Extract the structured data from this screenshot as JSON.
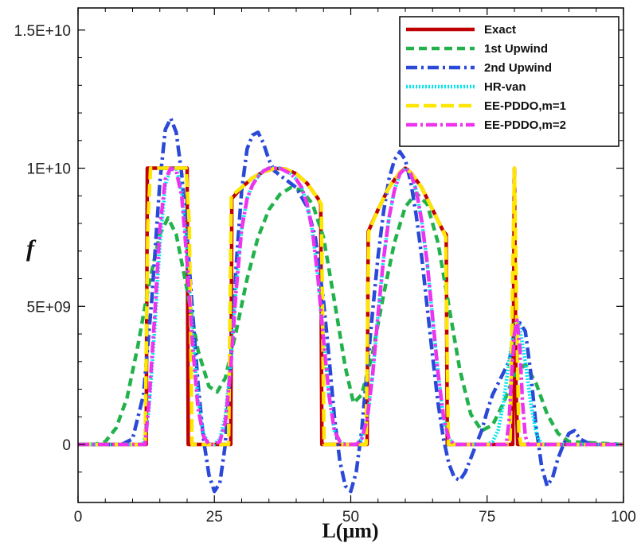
{
  "chart_data": {
    "type": "line",
    "title": "",
    "xlabel": "L(μm)",
    "ylabel": "f",
    "xlim": [
      0,
      100
    ],
    "ylim": [
      -2100000000,
      15800000000
    ],
    "x_ticks": [
      0,
      25,
      50,
      75,
      100
    ],
    "x_tick_labels": [
      "0",
      "25",
      "50",
      "75",
      "100"
    ],
    "y_ticks": [
      0,
      5000000000,
      10000000000,
      15000000000
    ],
    "y_tick_labels": [
      "0",
      "5E+09",
      "1E+10",
      "1.5E+10"
    ],
    "grid": false,
    "legend_position": "top-right",
    "series": [
      {
        "name": "Exact",
        "color": "#c00000",
        "dash": "solid",
        "x": [
          0,
          12.5,
          12.7,
          20,
          20.2,
          28,
          28.2,
          30,
          32,
          34,
          36,
          38,
          40,
          42,
          44,
          44.5,
          44.7,
          53,
          53.2,
          55,
          57,
          59,
          60,
          61,
          63,
          65,
          67,
          67.5,
          67.7,
          79.7,
          80,
          80.3,
          80.6,
          100
        ],
        "y": [
          0,
          0,
          10000000000,
          10000000000,
          0,
          0,
          8900000000,
          9300000000,
          9650000000,
          9870000000,
          9990000000,
          9970000000,
          9800000000,
          9450000000,
          8900000000,
          8700000000,
          0,
          0,
          7700000000,
          8500000000,
          9300000000,
          9850000000,
          10000000000,
          9850000000,
          9300000000,
          8500000000,
          7700000000,
          7600000000,
          0,
          0,
          10000000000,
          2000000000,
          0,
          0
        ]
      },
      {
        "name": "1st Upwind",
        "color": "#22b24c",
        "dash": "10 6",
        "x": [
          0,
          3,
          5,
          7,
          9,
          11,
          13,
          15,
          16.5,
          18,
          20,
          22,
          24,
          25.5,
          27,
          29,
          31,
          33,
          35,
          37,
          39,
          41,
          43,
          45,
          47,
          49,
          50.5,
          52,
          54,
          56,
          58,
          60,
          62,
          64,
          66,
          68,
          70,
          72,
          74,
          76,
          78,
          80,
          82,
          84,
          86,
          88,
          90,
          100
        ],
        "y": [
          0,
          0,
          100000000,
          600000000,
          1700000000,
          3600000000,
          5800000000,
          7600000000,
          8200000000,
          7600000000,
          5600000000,
          3400000000,
          2100000000,
          1900000000,
          2400000000,
          4100000000,
          6000000000,
          7500000000,
          8500000000,
          9050000000,
          9300000000,
          9200000000,
          8700000000,
          7500000000,
          5200000000,
          2800000000,
          1500000000,
          1800000000,
          3300000000,
          5400000000,
          7300000000,
          8600000000,
          9100000000,
          8700000000,
          7300000000,
          5000000000,
          2700000000,
          1100000000,
          500000000,
          700000000,
          1500000000,
          2500000000,
          2900000000,
          2200000000,
          1100000000,
          400000000,
          100000000,
          0
        ]
      },
      {
        "name": "2nd Upwind",
        "color": "#2a49d8",
        "dash": "14 5 3 5",
        "x": [
          0,
          8,
          10,
          12,
          13.5,
          15,
          16,
          17,
          18,
          19,
          20,
          21,
          22,
          23,
          24,
          25,
          26,
          27,
          28,
          29,
          30,
          31,
          32,
          33,
          34,
          35,
          36,
          38,
          40,
          42,
          43.5,
          45,
          46,
          47,
          48,
          49,
          50,
          51,
          52,
          53,
          54,
          55,
          56,
          57,
          58,
          59,
          60,
          61,
          62,
          63,
          64,
          65,
          66,
          67,
          68,
          69,
          70,
          71,
          72,
          73,
          74,
          75,
          76,
          77,
          78,
          79,
          80,
          81,
          82,
          83,
          84,
          85,
          86,
          87,
          88,
          89,
          90,
          91,
          92,
          94,
          100
        ],
        "y": [
          0,
          0,
          200000000,
          1800000000,
          5200000000,
          9500000000,
          11400000000,
          11800000000,
          11300000000,
          9800000000,
          7500000000,
          4800000000,
          2200000000,
          200000000,
          -1100000000,
          -1700000000,
          -1400000000,
          0,
          3000000000,
          6500000000,
          9200000000,
          10700000000,
          11200000000,
          11300000000,
          10900000000,
          10300000000,
          9900000000,
          9600000000,
          9300000000,
          8600000000,
          7500000000,
          5200000000,
          3200000000,
          1000000000,
          -600000000,
          -1500000000,
          -1700000000,
          -1000000000,
          500000000,
          2700000000,
          4800000000,
          6800000000,
          8400000000,
          9600000000,
          10300000000,
          10600000000,
          10300000000,
          9500000000,
          8300000000,
          6800000000,
          5000000000,
          3200000000,
          1500000000,
          200000000,
          -700000000,
          -1200000000,
          -1300000000,
          -1000000000,
          -500000000,
          0,
          500000000,
          1200000000,
          1800000000,
          2200000000,
          2600000000,
          3000000000,
          3800000000,
          4400000000,
          4100000000,
          2600000000,
          600000000,
          -800000000,
          -1500000000,
          -1200000000,
          -500000000,
          0,
          400000000,
          500000000,
          200000000,
          0,
          0
        ]
      },
      {
        "name": "HR-van",
        "color": "#00e5ee",
        "dash": "2 2",
        "x": [
          0,
          12,
          13,
          14,
          15,
          16,
          17,
          18,
          19,
          20,
          21,
          22,
          23,
          24,
          25,
          26,
          27,
          28,
          29,
          30,
          31,
          32,
          33,
          34,
          35,
          36,
          37,
          38,
          39,
          40,
          41,
          42,
          43,
          44,
          45,
          46,
          47,
          48,
          49,
          50,
          51,
          52,
          53,
          54,
          55,
          56,
          57,
          58,
          59,
          60,
          61,
          62,
          63,
          64,
          65,
          66,
          67,
          68,
          69,
          70,
          71,
          72,
          73,
          74,
          75,
          76,
          77,
          78,
          79,
          80,
          80.5,
          81,
          82,
          83,
          84,
          85,
          100
        ],
        "y": [
          0,
          0,
          1300000000,
          4000000000,
          7200000000,
          9400000000,
          10000000000,
          10000000000,
          9200000000,
          7000000000,
          4000000000,
          1600000000,
          400000000,
          0,
          0,
          200000000,
          1000000000,
          3000000000,
          5800000000,
          7800000000,
          8900000000,
          9400000000,
          9700000000,
          9900000000,
          10000000000,
          10000000000,
          10000000000,
          9900000000,
          9800000000,
          9600000000,
          9300000000,
          8700000000,
          7700000000,
          6000000000,
          3800000000,
          1800000000,
          500000000,
          100000000,
          0,
          0,
          0,
          200000000,
          900000000,
          2500000000,
          4700000000,
          6700000000,
          8200000000,
          9200000000,
          9800000000,
          10000000000,
          9800000000,
          9200000000,
          8100000000,
          6600000000,
          4600000000,
          2600000000,
          1000000000,
          200000000,
          0,
          0,
          0,
          0,
          0,
          0,
          0,
          100000000,
          500000000,
          1500000000,
          3000000000,
          4300000000,
          4500000000,
          4200000000,
          3000000000,
          1500000000,
          400000000,
          0,
          0
        ]
      },
      {
        "name": "EE-PDDO,m=1",
        "color": "#ffe600",
        "dash": "16 6",
        "x": [
          0,
          12.3,
          12.8,
          13.3,
          19.8,
          20.4,
          20.9,
          27.6,
          28.1,
          30,
          32,
          34,
          36,
          38,
          40,
          42,
          44,
          44.6,
          45.1,
          52.8,
          53.3,
          55,
          57,
          59,
          60,
          61,
          63,
          65,
          67,
          67.4,
          67.9,
          79.2,
          79.6,
          80,
          80.4,
          80.8,
          81.2,
          100
        ],
        "y": [
          0,
          0,
          8000000000,
          10000000000,
          10000000000,
          8000000000,
          0,
          0,
          9000000000,
          9300000000,
          9650000000,
          9870000000,
          9990000000,
          9970000000,
          9800000000,
          9450000000,
          8900000000,
          8700000000,
          0,
          0,
          7700000000,
          8500000000,
          9300000000,
          9850000000,
          10000000000,
          9850000000,
          9300000000,
          8500000000,
          7700000000,
          7500000000,
          0,
          0,
          5000000000,
          10000000000,
          5000000000,
          500000000,
          0,
          0
        ]
      },
      {
        "name": "EE-PDDO,m=2",
        "color": "#ee33ee",
        "dash": "14 4 3 4",
        "x": [
          0,
          12.3,
          13,
          14,
          15,
          16,
          17,
          18,
          19,
          20,
          21,
          22,
          23,
          24,
          25,
          26,
          27,
          28,
          29,
          30,
          31,
          32,
          33,
          34,
          35,
          36,
          37,
          38,
          39,
          40,
          41,
          42,
          43,
          44,
          45,
          46,
          47,
          48,
          49,
          50,
          51,
          52,
          53,
          54,
          55,
          56,
          57,
          58,
          59,
          60,
          61,
          62,
          63,
          64,
          65,
          66,
          67,
          68,
          69,
          70,
          78.5,
          79,
          79.5,
          80,
          80.5,
          81,
          81.5,
          82,
          82.5,
          100
        ],
        "y": [
          0,
          0,
          1500000000,
          4500000000,
          7800000000,
          9600000000,
          10000000000,
          9900000000,
          9000000000,
          6600000000,
          3600000000,
          1300000000,
          300000000,
          0,
          0,
          100000000,
          800000000,
          2800000000,
          5600000000,
          7800000000,
          8900000000,
          9400000000,
          9700000000,
          9900000000,
          10000000000,
          10000000000,
          10000000000,
          9900000000,
          9800000000,
          9600000000,
          9300000000,
          8700000000,
          7700000000,
          6000000000,
          3800000000,
          1800000000,
          500000000,
          100000000,
          0,
          0,
          0,
          200000000,
          900000000,
          2500000000,
          4700000000,
          6700000000,
          8200000000,
          9200000000,
          9800000000,
          10000000000,
          9800000000,
          9200000000,
          8100000000,
          6600000000,
          4600000000,
          2600000000,
          1000000000,
          200000000,
          0,
          0,
          0,
          800000000,
          2500000000,
          4000000000,
          4500000000,
          3500000000,
          1500000000,
          300000000,
          0,
          0
        ]
      }
    ]
  }
}
